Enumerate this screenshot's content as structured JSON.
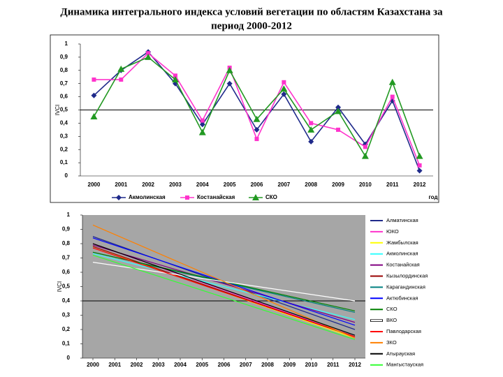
{
  "title_lines": [
    "Динамика интегрального индекса условий вегетации по областям Казахстана за",
    "период 2000-2012"
  ],
  "chart_data": [
    {
      "type": "line",
      "ylabel": "IVCI",
      "xlabel": "год",
      "categories": [
        "2000",
        "2001",
        "2002",
        "2003",
        "2004",
        "2005",
        "2006",
        "2007",
        "2008",
        "2009",
        "2010",
        "2011",
        "2012"
      ],
      "ylim": [
        0,
        1
      ],
      "yticks": [
        0,
        {
          "value": 0.1,
          "label": "0,1"
        },
        {
          "value": 0.2,
          "label": "0,2"
        },
        {
          "value": 0.3,
          "label": "0,3"
        },
        {
          "value": 0.4,
          "label": "0,4"
        },
        {
          "value": 0.5,
          "label": "0,5"
        },
        {
          "value": 0.6,
          "label": "0,6"
        },
        {
          "value": 0.7,
          "label": "0,7"
        },
        {
          "value": 0.8,
          "label": "0,8"
        },
        {
          "value": 0.9,
          "label": "0,9"
        },
        1
      ],
      "hline": 0.5,
      "series": [
        {
          "name": "Акмолинская",
          "color": "#1f2a8a",
          "marker": "diamond",
          "values": [
            0.61,
            0.8,
            0.94,
            0.7,
            0.39,
            0.7,
            0.35,
            0.62,
            0.26,
            0.52,
            0.24,
            0.57,
            0.04
          ]
        },
        {
          "name": "Костанайская",
          "color": "#ff33cc",
          "marker": "square",
          "values": [
            0.73,
            0.73,
            0.93,
            0.76,
            0.42,
            0.82,
            0.28,
            0.71,
            0.4,
            0.35,
            0.22,
            0.6,
            0.08
          ]
        },
        {
          "name": "СКО",
          "color": "#229922",
          "marker": "triangle",
          "values": [
            0.45,
            0.81,
            0.9,
            0.73,
            0.33,
            0.8,
            0.43,
            0.66,
            0.35,
            0.49,
            0.15,
            0.71,
            0.15
          ]
        }
      ]
    },
    {
      "type": "line",
      "ylabel": "IVCI",
      "x": [
        2000,
        2012
      ],
      "xlim": [
        2000,
        2012
      ],
      "xticks": [
        2000,
        2001,
        2002,
        2003,
        2004,
        2005,
        2006,
        2007,
        2008,
        2009,
        2010,
        2011,
        2012
      ],
      "ylim": [
        0,
        1
      ],
      "yticks": [
        0,
        {
          "value": 0.1,
          "label": "0,1"
        },
        {
          "value": 0.2,
          "label": "0,2"
        },
        {
          "value": 0.3,
          "label": "0,3"
        },
        {
          "value": 0.4,
          "label": "0,4"
        },
        {
          "value": 0.5,
          "label": "0,5"
        },
        {
          "value": 0.6,
          "label": "0,6"
        },
        {
          "value": 0.7,
          "label": "0,7"
        },
        {
          "value": 0.8,
          "label": "0,8"
        },
        {
          "value": 0.9,
          "label": "0,9"
        },
        1
      ],
      "hline": 0.4,
      "background": "#a6a6a6",
      "series": [
        {
          "name": "Алматинская",
          "color": "#1f2a8a",
          "values": [
            0.85,
            0.2
          ]
        },
        {
          "name": "ЮКО",
          "color": "#ff33cc",
          "values": [
            0.8,
            0.15
          ]
        },
        {
          "name": "Жамбылская",
          "color": "#ffff00",
          "values": [
            0.78,
            0.14
          ]
        },
        {
          "name": "Акмолинская",
          "color": "#33ffff",
          "values": [
            0.73,
            0.27
          ]
        },
        {
          "name": "Костанайская",
          "color": "#800080",
          "values": [
            0.79,
            0.25
          ]
        },
        {
          "name": "Кызылординская",
          "color": "#990000",
          "values": [
            0.78,
            0.15
          ]
        },
        {
          "name": "Карагандинская",
          "color": "#008080",
          "values": [
            0.74,
            0.32
          ]
        },
        {
          "name": "Актюбинская",
          "color": "#0000ff",
          "values": [
            0.84,
            0.23
          ]
        },
        {
          "name": "СКО",
          "color": "#008000",
          "values": [
            0.74,
            0.33
          ]
        },
        {
          "name": "ВКО",
          "color": "#ffffff",
          "values": [
            0.67,
            0.4
          ]
        },
        {
          "name": "Павлодарская",
          "color": "#ff0000",
          "values": [
            0.77,
            0.15
          ]
        },
        {
          "name": "ЗКО",
          "color": "#ff8000",
          "values": [
            0.93,
            0.14
          ]
        },
        {
          "name": "Атырауская",
          "color": "#000000",
          "values": [
            0.8,
            0.16
          ]
        },
        {
          "name": "Мангыстауская",
          "color": "#33ff33",
          "values": [
            0.72,
            0.13
          ]
        }
      ]
    }
  ]
}
